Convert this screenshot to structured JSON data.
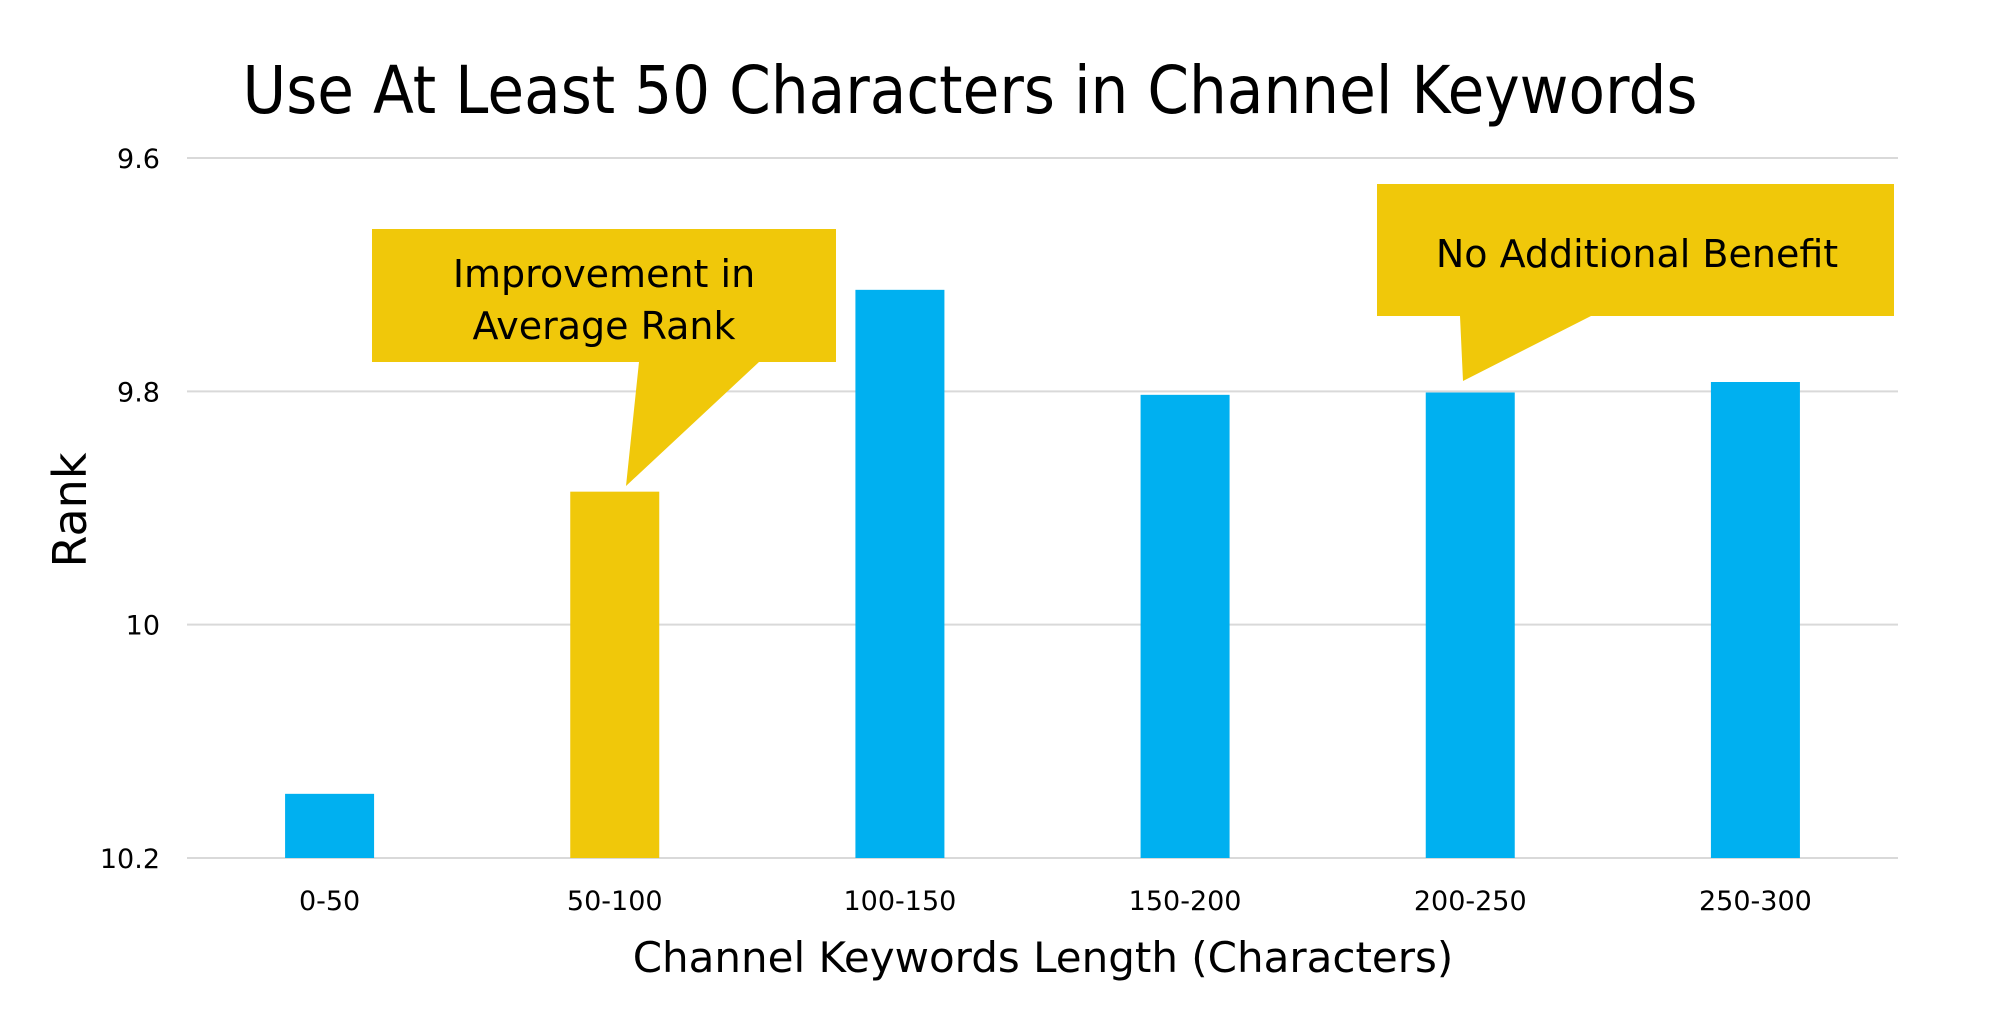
{
  "chart_data": {
    "type": "bar",
    "title": "Use At Least 50 Characters in Channel Keywords",
    "xlabel": "Channel Keywords Length (Characters)",
    "ylabel": "Rank",
    "categories": [
      "0-50",
      "50-100",
      "100-150",
      "150-200",
      "200-250",
      "250-300"
    ],
    "values": [
      10.145,
      9.886,
      9.713,
      9.803,
      9.801,
      9.792
    ],
    "highlighted": [
      false,
      true,
      false,
      false,
      false,
      false
    ],
    "ylim": [
      9.6,
      10.2
    ],
    "y_inverted": true,
    "yticks": [
      "9.6",
      "9.8",
      "10",
      "10.2"
    ],
    "grid": true,
    "legend": "none",
    "annotations": [
      {
        "lines": [
          "Improvement in",
          "Average Rank"
        ],
        "points_to": "50-100"
      },
      {
        "lines": [
          "No Additional Benefit"
        ],
        "points_to": "200-250"
      }
    ],
    "colors": {
      "bar": "#00B0F0",
      "highlight": "#F0C80A",
      "callout": "#F0C80A",
      "grid": "#D9D9D9"
    }
  }
}
